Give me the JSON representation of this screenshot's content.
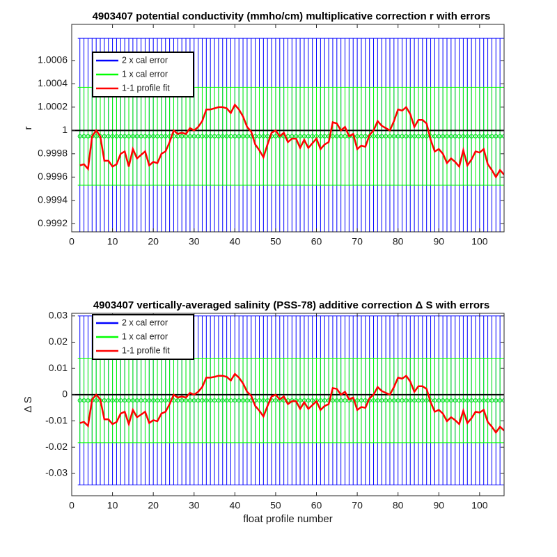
{
  "chart_data": [
    {
      "type": "errorbar-line",
      "title": "4903407 potential conductivity (mmho/cm) multiplicative correction r with errors",
      "ylabel": "r",
      "x": [
        2,
        3,
        4,
        5,
        6,
        7,
        8,
        9,
        10,
        11,
        12,
        13,
        14,
        15,
        16,
        17,
        18,
        19,
        20,
        21,
        22,
        23,
        24,
        25,
        26,
        27,
        28,
        29,
        30,
        31,
        32,
        33,
        34,
        35,
        36,
        37,
        38,
        39,
        40,
        41,
        42,
        43,
        44,
        45,
        46,
        47,
        48,
        49,
        50,
        51,
        52,
        53,
        54,
        55,
        56,
        57,
        58,
        59,
        60,
        61,
        62,
        63,
        64,
        65,
        66,
        67,
        68,
        69,
        70,
        71,
        72,
        73,
        74,
        75,
        76,
        77,
        78,
        79,
        80,
        81,
        82,
        83,
        84,
        85,
        86,
        87,
        88,
        89,
        90,
        91,
        92,
        93,
        94,
        95,
        96,
        97,
        98,
        99,
        100,
        101,
        102,
        103,
        104,
        105,
        106
      ],
      "xlim": [
        0,
        106
      ],
      "xticks": [
        0,
        10,
        20,
        30,
        40,
        50,
        60,
        70,
        80,
        90,
        100
      ],
      "ylim": [
        0.99913,
        1.00091
      ],
      "yticks": [
        0.9992,
        0.9994,
        0.9996,
        0.9998,
        1,
        1.0002,
        1.0004,
        1.0006
      ],
      "hline": 1,
      "legend": "upper left",
      "series": [
        {
          "name": "2 x cal error",
          "color": "#0000ff",
          "center": 0.99995,
          "error": 0.00084
        },
        {
          "name": "1 x cal error",
          "color": "#00ff00",
          "center": 0.99995,
          "error": 0.00042
        },
        {
          "name": "1-1 profile fit",
          "color": "#ff0000",
          "values": [
            0.9997,
            0.99971,
            0.99967,
            0.99995,
            1,
            0.99995,
            0.99974,
            0.99974,
            0.99969,
            0.99971,
            0.9998,
            0.99982,
            0.99969,
            0.99984,
            0.99976,
            0.99979,
            0.99982,
            0.9997,
            0.99973,
            0.99972,
            0.9998,
            0.99982,
            0.9999,
            1,
            0.99997,
            0.99998,
            0.99997,
            1.00002,
            1,
            1.00003,
            1.00008,
            1.00018,
            1.00018,
            1.00019,
            1.0002,
            1.0002,
            1.00019,
            1.00015,
            1.00022,
            1.00018,
            1.00012,
            1.00003,
            0.99999,
            0.99988,
            0.99983,
            0.99977,
            0.99988,
            0.99998,
            1,
            0.99995,
            0.99998,
            0.9999,
            0.99993,
            0.99993,
            0.99985,
            0.99992,
            0.99985,
            0.99989,
            0.99993,
            0.99984,
            0.99988,
            0.9999,
            1.00007,
            1.00006,
            1,
            1.00003,
            0.99995,
            0.99997,
            0.99984,
            0.99987,
            0.99986,
            0.99996,
            1,
            1.00008,
            1.00004,
            1.00002,
            1,
            1.00008,
            1.00018,
            1.00017,
            1.0002,
            1.00014,
            1.00003,
            1.00009,
            1.00009,
            1.00006,
            0.99992,
            0.99982,
            0.99984,
            0.9998,
            0.99972,
            0.99976,
            0.99973,
            0.99969,
            0.99983,
            0.9997,
            0.99975,
            0.99982,
            0.99981,
            0.99984,
            0.99971,
            0.99966,
            0.9996,
            0.99966,
            0.99962
          ]
        }
      ]
    },
    {
      "type": "errorbar-line",
      "title": "4903407 vertically-averaged salinity (PSS-78) additive correction Δ S with errors",
      "ylabel": "Δ S",
      "xlabel": "float profile number",
      "x": [
        2,
        3,
        4,
        5,
        6,
        7,
        8,
        9,
        10,
        11,
        12,
        13,
        14,
        15,
        16,
        17,
        18,
        19,
        20,
        21,
        22,
        23,
        24,
        25,
        26,
        27,
        28,
        29,
        30,
        31,
        32,
        33,
        34,
        35,
        36,
        37,
        38,
        39,
        40,
        41,
        42,
        43,
        44,
        45,
        46,
        47,
        48,
        49,
        50,
        51,
        52,
        53,
        54,
        55,
        56,
        57,
        58,
        59,
        60,
        61,
        62,
        63,
        64,
        65,
        66,
        67,
        68,
        69,
        70,
        71,
        72,
        73,
        74,
        75,
        76,
        77,
        78,
        79,
        80,
        81,
        82,
        83,
        84,
        85,
        86,
        87,
        88,
        89,
        90,
        91,
        92,
        93,
        94,
        95,
        96,
        97,
        98,
        99,
        100,
        101,
        102,
        103,
        104,
        105,
        106
      ],
      "xlim": [
        0,
        106
      ],
      "xticks": [
        0,
        10,
        20,
        30,
        40,
        50,
        60,
        70,
        80,
        90,
        100
      ],
      "ylim": [
        -0.0385,
        0.031
      ],
      "yticks": [
        -0.03,
        -0.02,
        -0.01,
        0,
        0.01,
        0.02,
        0.03
      ],
      "hline": 0,
      "legend": "upper left",
      "series": [
        {
          "name": "2 x cal error",
          "color": "#0000ff",
          "center": -0.0022,
          "error": 0.0322
        },
        {
          "name": "1 x cal error",
          "color": "#00ff00",
          "center": -0.0022,
          "error": 0.0161
        },
        {
          "name": "1-1 profile fit",
          "color": "#ff0000",
          "values": [
            -0.0108,
            -0.0104,
            -0.0119,
            -0.0018,
            0,
            -0.0018,
            -0.0094,
            -0.0094,
            -0.0112,
            -0.0104,
            -0.0072,
            -0.0065,
            -0.0112,
            -0.0058,
            -0.0086,
            -0.0076,
            -0.0065,
            -0.0108,
            -0.0097,
            -0.0101,
            -0.0072,
            -0.0065,
            -0.0036,
            0,
            -0.0011,
            -0.0007,
            -0.0011,
            0.0007,
            0,
            0.0011,
            0.0029,
            0.0065,
            0.0065,
            0.0068,
            0.0072,
            0.0072,
            0.0068,
            0.0054,
            0.0079,
            0.0065,
            0.0043,
            0.0011,
            -0.0004,
            -0.0043,
            -0.0061,
            -0.0083,
            -0.0043,
            -0.0007,
            0,
            -0.0018,
            -0.0007,
            -0.0036,
            -0.0025,
            -0.0025,
            -0.0054,
            -0.0029,
            -0.0054,
            -0.004,
            -0.0025,
            -0.0058,
            -0.0043,
            -0.0036,
            0.0025,
            0.0022,
            0,
            0.0011,
            -0.0018,
            -0.0011,
            -0.0058,
            -0.0047,
            -0.005,
            -0.0014,
            0,
            0.0029,
            0.0014,
            0.0007,
            0,
            0.0029,
            0.0065,
            0.0061,
            0.0072,
            0.005,
            0.0011,
            0.0032,
            0.0032,
            0.0022,
            -0.0029,
            -0.0065,
            -0.0058,
            -0.0072,
            -0.0101,
            -0.0086,
            -0.0097,
            -0.0112,
            -0.0061,
            -0.0108,
            -0.009,
            -0.0065,
            -0.0068,
            -0.0058,
            -0.0104,
            -0.0122,
            -0.0144,
            -0.0122,
            -0.0137
          ]
        }
      ]
    }
  ]
}
